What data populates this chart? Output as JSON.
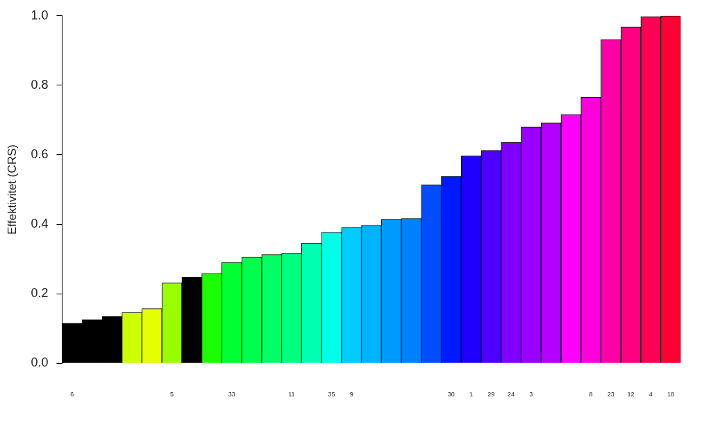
{
  "chart_data": {
    "type": "bar",
    "ylabel": "Effektivitet (CRS)",
    "categories": [
      "6",
      null,
      null,
      null,
      null,
      "5",
      null,
      null,
      "33",
      null,
      null,
      "11",
      null,
      "35",
      "9",
      null,
      null,
      null,
      null,
      "30",
      "1",
      "29",
      "24",
      "3",
      null,
      null,
      "8",
      "23",
      "12",
      "4",
      "18"
    ],
    "values": [
      0.115,
      0.125,
      0.135,
      0.146,
      0.157,
      0.231,
      0.248,
      0.258,
      0.29,
      0.306,
      0.313,
      0.316,
      0.346,
      0.377,
      0.391,
      0.397,
      0.414,
      0.417,
      0.514,
      0.538,
      0.597,
      0.613,
      0.635,
      0.68,
      0.692,
      0.716,
      0.765,
      0.932,
      0.968,
      0.998,
      1.0
    ],
    "colors": [
      "#000000",
      "#000000",
      "#000000",
      "#ccff00",
      "#e6ff00",
      "#99ff00",
      "#000000",
      "#1aff00",
      "#00ff33",
      "#00ff4d",
      "#00ff66",
      "#00ff80",
      "#00ffb3",
      "#00ffe6",
      "#00ccff",
      "#00b3ff",
      "#0099ff",
      "#0080ff",
      "#004dff",
      "#0019ff",
      "#1f00ff",
      "#4d00ff",
      "#8000ff",
      "#9900ff",
      "#b300ff",
      "#ff00ff",
      "#ff00dd",
      "#ff00a8",
      "#ff0080",
      "#ff0055",
      "#ff0033"
    ],
    "ylim": [
      0,
      1
    ],
    "yticks": [
      {
        "value": 0,
        "label": "0.0"
      },
      {
        "value": 0.2,
        "label": "0.2"
      },
      {
        "value": 0.4,
        "label": "0.4"
      },
      {
        "value": 0.6,
        "label": "0.6"
      },
      {
        "value": 0.8,
        "label": "0.8"
      },
      {
        "value": 1,
        "label": "1.0"
      }
    ]
  }
}
